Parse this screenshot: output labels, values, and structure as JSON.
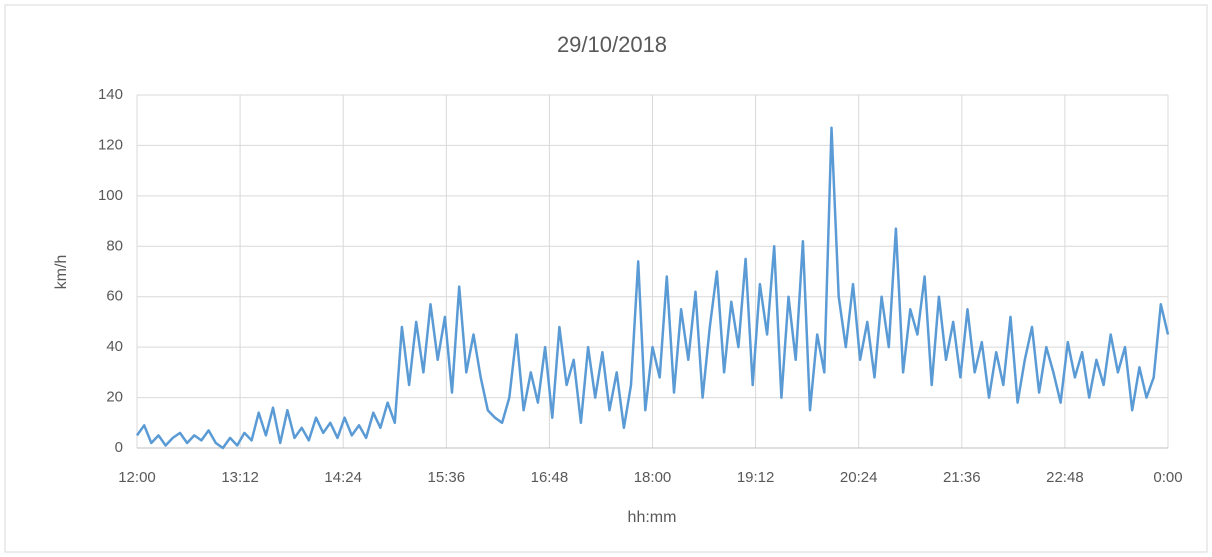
{
  "chart_data": {
    "type": "line",
    "title": "29/10/2018",
    "xlabel": "hh:mm",
    "ylabel": "km/h",
    "x": [
      720,
      725,
      730,
      735,
      740,
      745,
      750,
      755,
      760,
      765,
      770,
      775,
      780,
      785,
      790,
      795,
      800,
      805,
      810,
      815,
      820,
      825,
      830,
      835,
      840,
      845,
      850,
      855,
      860,
      865,
      870,
      875,
      880,
      885,
      890,
      895,
      900,
      905,
      910,
      915,
      920,
      925,
      930,
      935,
      940,
      945,
      950,
      955,
      960,
      965,
      970,
      975,
      980,
      985,
      990,
      995,
      1000,
      1005,
      1010,
      1015,
      1020,
      1025,
      1030,
      1035,
      1040,
      1045,
      1050,
      1055,
      1060,
      1065,
      1070,
      1075,
      1080,
      1085,
      1090,
      1095,
      1100,
      1105,
      1110,
      1115,
      1120,
      1125,
      1130,
      1135,
      1140,
      1145,
      1150,
      1155,
      1160,
      1165,
      1170,
      1175,
      1180,
      1185,
      1190,
      1195,
      1200,
      1205,
      1210,
      1215,
      1220,
      1225,
      1230,
      1235,
      1240,
      1245,
      1250,
      1255,
      1260,
      1265,
      1270,
      1275,
      1280,
      1285,
      1290,
      1295,
      1300,
      1305,
      1310,
      1315,
      1320,
      1325,
      1330,
      1335,
      1340,
      1345,
      1350,
      1355,
      1360,
      1365,
      1370,
      1375,
      1380,
      1385,
      1390,
      1395,
      1400,
      1405,
      1410,
      1415,
      1420,
      1425,
      1430,
      1435,
      1440
    ],
    "series": [
      {
        "name": "km/h",
        "color": "#5b9bd5",
        "values": [
          5,
          9,
          2,
          5,
          1,
          4,
          6,
          2,
          5,
          3,
          7,
          2,
          0,
          4,
          1,
          6,
          3,
          14,
          5,
          16,
          2,
          15,
          4,
          8,
          3,
          12,
          6,
          10,
          4,
          12,
          5,
          9,
          4,
          14,
          8,
          18,
          10,
          48,
          25,
          50,
          30,
          57,
          35,
          52,
          22,
          64,
          30,
          45,
          28,
          15,
          12,
          10,
          20,
          45,
          15,
          30,
          18,
          40,
          12,
          48,
          25,
          35,
          10,
          40,
          20,
          38,
          15,
          30,
          8,
          25,
          74,
          15,
          40,
          28,
          68,
          22,
          55,
          35,
          62,
          20,
          48,
          70,
          30,
          58,
          40,
          75,
          25,
          65,
          45,
          80,
          20,
          60,
          35,
          82,
          15,
          45,
          30,
          127,
          60,
          40,
          65,
          35,
          50,
          28,
          60,
          40,
          87,
          30,
          55,
          45,
          68,
          25,
          60,
          35,
          50,
          28,
          55,
          30,
          42,
          20,
          38,
          25,
          52,
          18,
          35,
          48,
          22,
          40,
          30,
          18,
          42,
          28,
          38,
          20,
          35,
          25,
          45,
          30,
          40,
          15,
          32,
          20,
          28,
          57,
          45
        ]
      }
    ],
    "xlim": [
      720,
      1440
    ],
    "xticks": [
      {
        "value": 720,
        "label": "12:00"
      },
      {
        "value": 792,
        "label": "13:12"
      },
      {
        "value": 864,
        "label": "14:24"
      },
      {
        "value": 936,
        "label": "15:36"
      },
      {
        "value": 1008,
        "label": "16:48"
      },
      {
        "value": 1080,
        "label": "18:00"
      },
      {
        "value": 1152,
        "label": "19:12"
      },
      {
        "value": 1224,
        "label": "20:24"
      },
      {
        "value": 1296,
        "label": "21:36"
      },
      {
        "value": 1368,
        "label": "22:48"
      },
      {
        "value": 1440,
        "label": "0:00"
      }
    ],
    "ylim": [
      0,
      140
    ],
    "yticks": [
      0,
      20,
      40,
      60,
      80,
      100,
      120,
      140
    ],
    "grid": true
  }
}
